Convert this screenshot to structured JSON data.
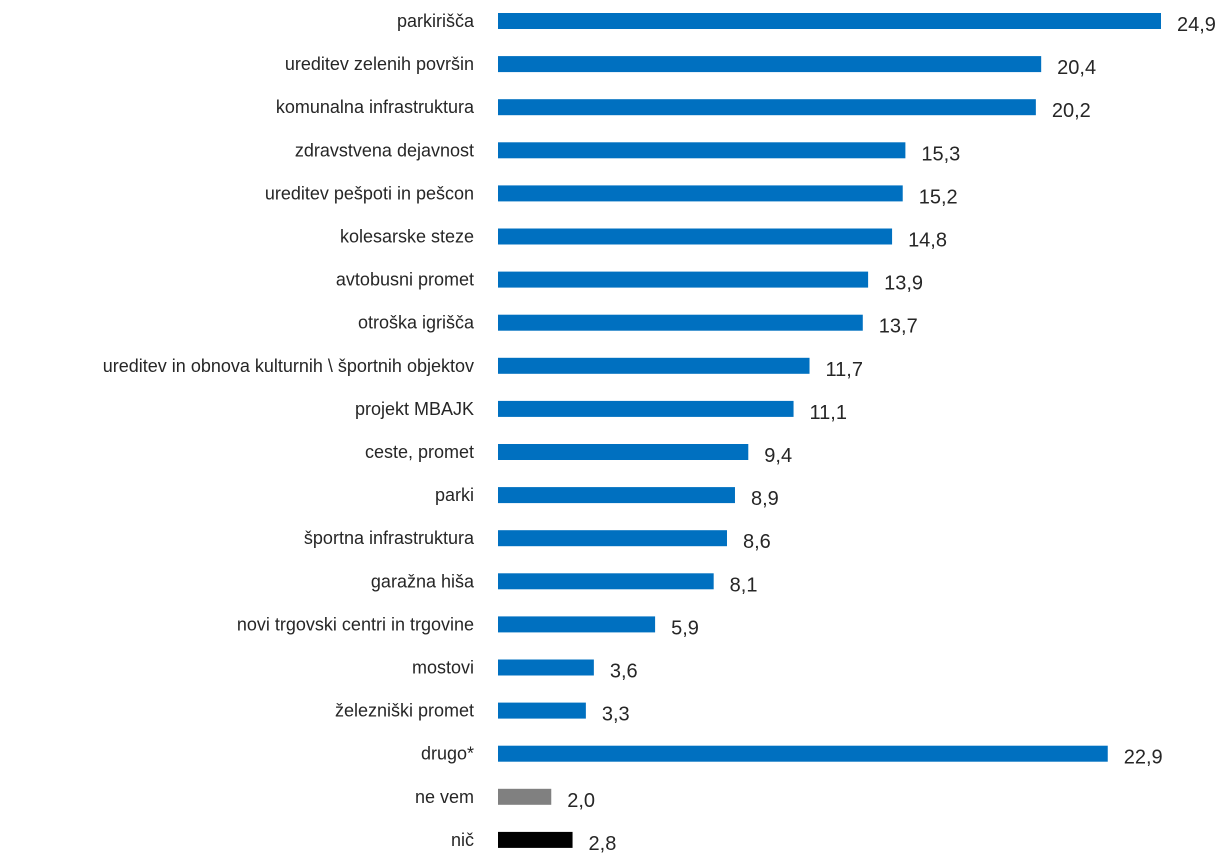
{
  "chart_data": {
    "type": "bar",
    "orientation": "horizontal",
    "title": "",
    "xlabel": "",
    "ylabel": "",
    "xlim": [
      0,
      24.9
    ],
    "grid": false,
    "legend": "none",
    "categories": [
      "parkirišča",
      "ureditev zelenih površin",
      "komunalna infrastruktura",
      "zdravstvena dejavnost",
      "ureditev pešpoti in pešcon",
      "kolesarske steze",
      "avtobusni promet",
      "otroška igrišča",
      "ureditev in obnova kulturnih \\ športnih objektov",
      "projekt MBAJK",
      "ceste, promet",
      "parki",
      "športna infrastruktura",
      "garažna hiša",
      "novi trgovski centri in trgovine",
      "mostovi",
      "železniški promet",
      "drugo*",
      "ne vem",
      "nič"
    ],
    "values": [
      24.9,
      20.4,
      20.2,
      15.3,
      15.2,
      14.8,
      13.9,
      13.7,
      11.7,
      11.1,
      9.4,
      8.9,
      8.6,
      8.1,
      5.9,
      3.6,
      3.3,
      22.9,
      2.0,
      2.8
    ],
    "value_labels": [
      "24,9",
      "20,4",
      "20,2",
      "15,3",
      "15,2",
      "14,8",
      "13,9",
      "13,7",
      "11,7",
      "11,1",
      "9,4",
      "8,9",
      "8,6",
      "8,1",
      "5,9",
      "3,6",
      "3,3",
      "22,9",
      "2,0",
      "2,8"
    ],
    "bar_colors": [
      "#0070c0",
      "#0070c0",
      "#0070c0",
      "#0070c0",
      "#0070c0",
      "#0070c0",
      "#0070c0",
      "#0070c0",
      "#0070c0",
      "#0070c0",
      "#0070c0",
      "#0070c0",
      "#0070c0",
      "#0070c0",
      "#0070c0",
      "#0070c0",
      "#0070c0",
      "#0070c0",
      "#808080",
      "#000000"
    ]
  }
}
